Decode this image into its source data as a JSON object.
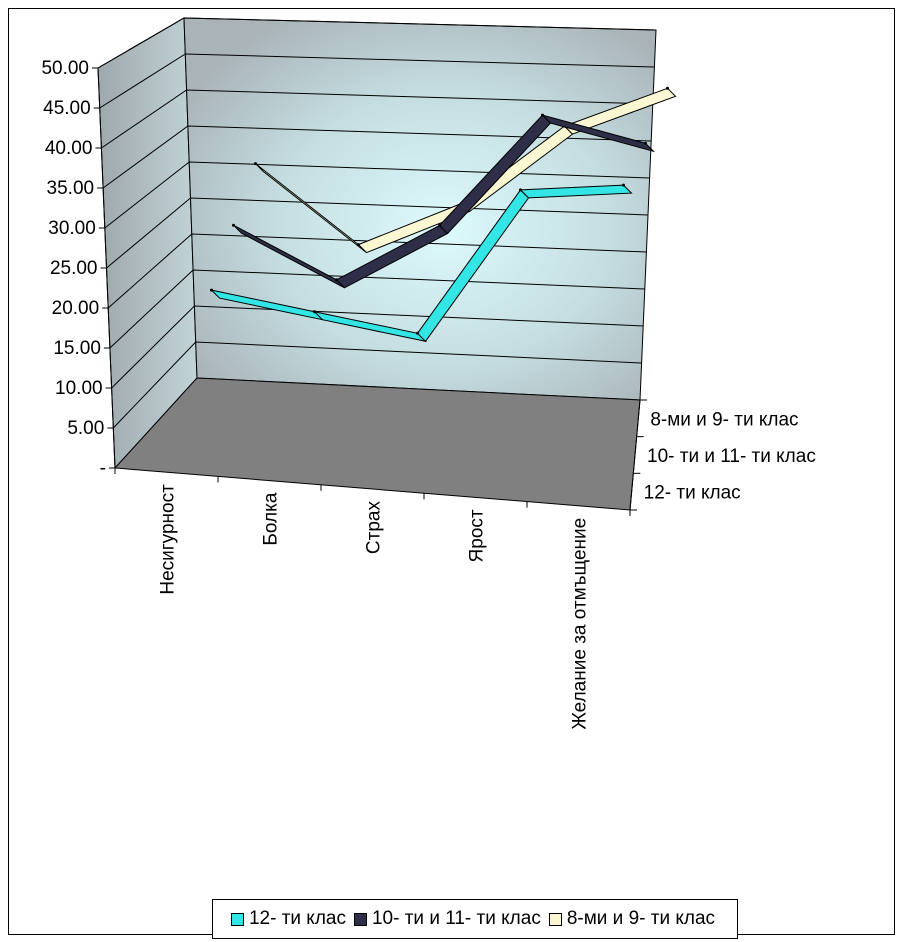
{
  "chart_data": {
    "type": "line",
    "categories": [
      "Несигурност",
      "Болка",
      "Страх",
      "Ярост",
      "Желание за отмъщение"
    ],
    "series": [
      {
        "name": "12- ти клас",
        "values": [
          18.5,
          16.5,
          14.5,
          37.5,
          39.5
        ],
        "color": "#33E5E5"
      },
      {
        "name": "10- ти и 11- ти клас",
        "values": [
          25.0,
          18.0,
          27.5,
          45.5,
          42.5
        ],
        "color": "#2E2E48"
      },
      {
        "name": "8-ми и 9- ти клас",
        "values": [
          31.0,
          20.0,
          27.5,
          40.5,
          47.5
        ],
        "color": "#FAF7D2"
      }
    ],
    "y_ticks": [
      "-",
      "5.00",
      "10.00",
      "15.00",
      "20.00",
      "25.00",
      "30.00",
      "35.00",
      "40.00",
      "45.00",
      "50.00"
    ],
    "ylim": [
      0,
      50
    ],
    "depth_labels": [
      "8-ми и 9- ти клас",
      "10- ти и 11- ти клас",
      "12- ти клас"
    ],
    "grid": true,
    "legend_position": "bottom",
    "wall_color": "#B8C8CC",
    "floor_color": "#808080"
  }
}
